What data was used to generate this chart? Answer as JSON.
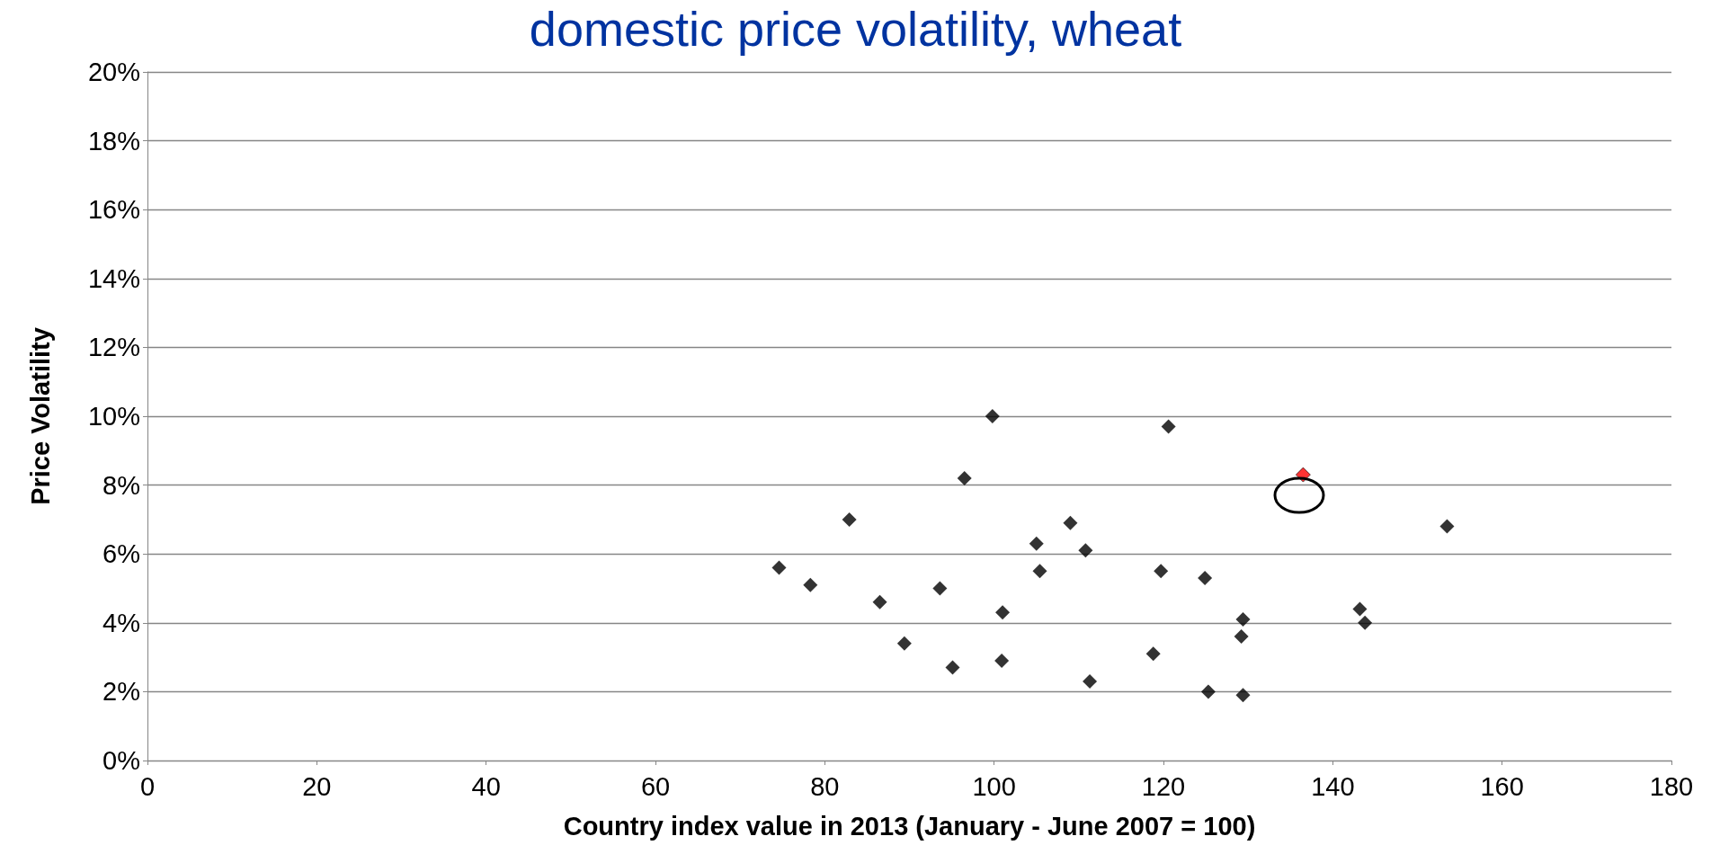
{
  "chart_data": {
    "type": "scatter",
    "title": "domestic price volatility, wheat",
    "xlabel": "Country index value in 2013 (January - June 2007 = 100)",
    "ylabel": "Price Volatility",
    "xlim": [
      0,
      180
    ],
    "xticks": [
      0,
      20,
      40,
      60,
      80,
      100,
      120,
      140,
      160,
      180
    ],
    "ylim": [
      0,
      20
    ],
    "yticks": [
      {
        "value": 0,
        "label": "0%"
      },
      {
        "value": 2,
        "label": "2%"
      },
      {
        "value": 4,
        "label": "4%"
      },
      {
        "value": 6,
        "label": "6%"
      },
      {
        "value": 8,
        "label": "8%"
      },
      {
        "value": 10,
        "label": "10%"
      },
      {
        "value": 12,
        "label": "12%"
      },
      {
        "value": 14,
        "label": "14%"
      },
      {
        "value": 16,
        "label": "16%"
      },
      {
        "value": 18,
        "label": "18%"
      },
      {
        "value": 20,
        "label": "20%"
      }
    ],
    "grid": "y",
    "marker": "diamond",
    "series": [
      {
        "color": "#000000",
        "x": [
          74.6,
          78.3,
          82.9,
          86.5,
          89.4,
          93.6,
          95.1,
          96.5,
          99.8,
          101.0,
          100.9,
          105.0,
          105.4,
          109.0,
          110.8,
          111.3,
          118.8,
          119.7,
          120.6,
          124.9,
          125.3,
          129.4,
          129.2,
          129.4,
          143.2,
          143.8,
          153.5
        ],
        "values": [
          5.6,
          5.1,
          7.0,
          4.6,
          3.4,
          5.0,
          2.7,
          8.2,
          10.0,
          4.3,
          2.9,
          6.3,
          5.5,
          6.9,
          6.1,
          2.3,
          3.1,
          5.5,
          9.7,
          5.3,
          2.0,
          4.1,
          3.6,
          1.9,
          4.4,
          4.0,
          6.8
        ]
      },
      {
        "color": "#ff0000",
        "x": [
          136.5
        ],
        "values": [
          8.3
        ]
      }
    ]
  }
}
